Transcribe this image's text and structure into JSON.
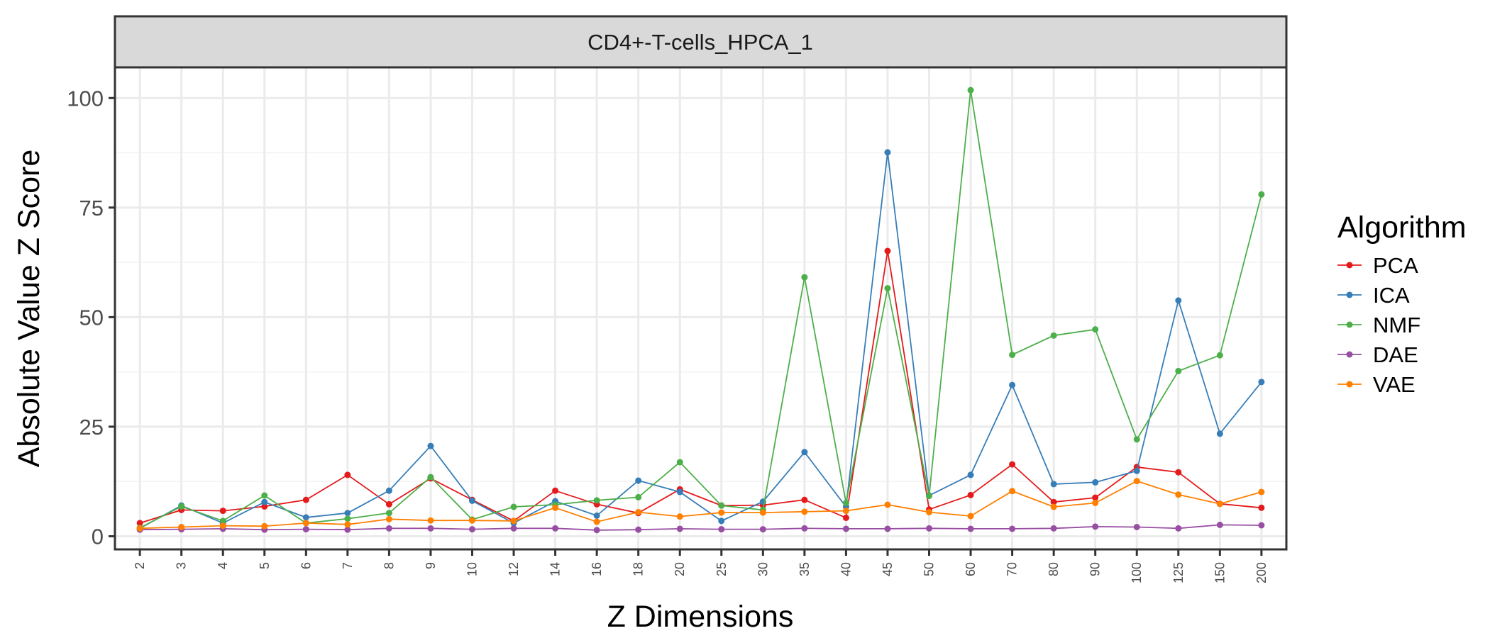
{
  "chart_data": {
    "type": "line",
    "facet_title": "CD4+-T-cells_HPCA_1",
    "xlabel": "Z Dimensions",
    "ylabel": "Absolute Value Z Score",
    "categories": [
      "2",
      "3",
      "4",
      "5",
      "6",
      "7",
      "8",
      "9",
      "10",
      "12",
      "14",
      "16",
      "18",
      "20",
      "25",
      "30",
      "35",
      "40",
      "45",
      "50",
      "60",
      "70",
      "80",
      "90",
      "100",
      "125",
      "150",
      "200"
    ],
    "ylim": [
      -3,
      107
    ],
    "yticks": [
      0,
      25,
      50,
      75,
      100
    ],
    "grid": true,
    "legend": {
      "title": "Algorithm",
      "position": "right"
    },
    "series": [
      {
        "name": "PCA",
        "color": "#E41A1C",
        "values": [
          3.0,
          6.0,
          5.8,
          6.8,
          8.3,
          14.0,
          7.3,
          13.2,
          8.3,
          3.5,
          10.4,
          7.3,
          5.3,
          10.7,
          7.0,
          7.1,
          8.3,
          4.2,
          65.1,
          6.1,
          9.4,
          16.4,
          7.8,
          8.8,
          15.8,
          14.6,
          7.4,
          6.5
        ]
      },
      {
        "name": "ICA",
        "color": "#377EB8",
        "values": [
          1.8,
          7.0,
          3.0,
          7.8,
          4.3,
          5.3,
          10.4,
          20.6,
          8.1,
          3.0,
          8.0,
          4.7,
          12.7,
          10.1,
          3.5,
          7.9,
          19.2,
          6.7,
          87.6,
          9.3,
          14.0,
          34.5,
          11.9,
          12.3,
          14.9,
          53.8,
          23.4,
          35.2
        ]
      },
      {
        "name": "NMF",
        "color": "#4DAF4A",
        "values": [
          1.9,
          6.8,
          3.5,
          9.3,
          3.0,
          4.0,
          5.3,
          13.5,
          3.8,
          6.7,
          7.2,
          8.2,
          8.9,
          16.9,
          7.0,
          6.0,
          59.1,
          7.6,
          56.6,
          9.2,
          101.8,
          41.4,
          45.8,
          47.2,
          22.1,
          37.7,
          41.3,
          78.0
        ]
      },
      {
        "name": "DAE",
        "color": "#984EA3",
        "values": [
          1.5,
          1.6,
          1.7,
          1.5,
          1.6,
          1.5,
          1.8,
          1.8,
          1.6,
          1.8,
          1.8,
          1.4,
          1.5,
          1.7,
          1.6,
          1.6,
          1.8,
          1.7,
          1.7,
          1.8,
          1.7,
          1.7,
          1.8,
          2.2,
          2.1,
          1.8,
          2.6,
          2.5
        ]
      },
      {
        "name": "VAE",
        "color": "#FF7F00",
        "values": [
          1.8,
          2.1,
          2.4,
          2.3,
          3.0,
          2.7,
          3.9,
          3.6,
          3.6,
          3.5,
          6.5,
          3.3,
          5.5,
          4.5,
          5.4,
          5.4,
          5.6,
          5.8,
          7.2,
          5.5,
          4.6,
          10.3,
          6.7,
          7.6,
          12.6,
          9.5,
          7.4,
          10.1
        ]
      }
    ]
  }
}
